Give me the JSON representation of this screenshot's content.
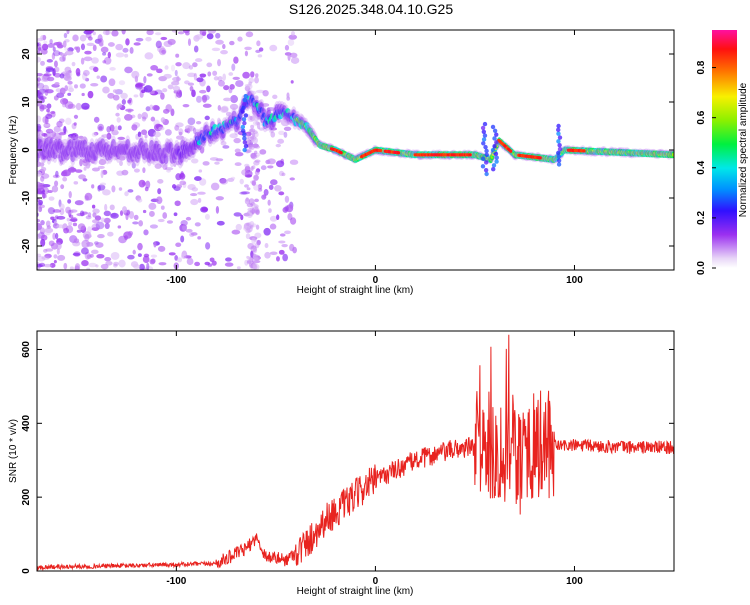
{
  "title": "S126.2025.348.04.10.G25",
  "colors": {
    "snr_line": "#e8231f",
    "background": "#ffffff"
  },
  "chart_data": [
    {
      "type": "heatmap",
      "xlabel": "Height of straight line (km)",
      "ylabel": "Frequency (Hz)",
      "xlim": [
        -170,
        150
      ],
      "ylim": [
        -25,
        25
      ],
      "xticks": [
        -100,
        0,
        100
      ],
      "yticks": [
        -20,
        -10,
        0,
        10,
        20
      ],
      "colorbar": {
        "label": "Normalized spectral amplitude",
        "range": [
          0,
          0.95
        ],
        "ticks": [
          0.0,
          0.2,
          0.4,
          0.6,
          0.8
        ],
        "colormap": "rainbow (white-violet-blue-cyan-green-yellow-red-magenta)"
      },
      "ridge": {
        "description": "dominant frequency track",
        "points": [
          {
            "x": -170,
            "f": 0
          },
          {
            "x": -120,
            "f": 0
          },
          {
            "x": -100,
            "f": -1
          },
          {
            "x": -85,
            "f": 3
          },
          {
            "x": -70,
            "f": 6
          },
          {
            "x": -62,
            "f": 11
          },
          {
            "x": -55,
            "f": 6
          },
          {
            "x": -45,
            "f": 8
          },
          {
            "x": -35,
            "f": 5
          },
          {
            "x": -28,
            "f": 1
          },
          {
            "x": -20,
            "f": 0
          },
          {
            "x": -10,
            "f": -2
          },
          {
            "x": 0,
            "f": 0
          },
          {
            "x": 20,
            "f": -1
          },
          {
            "x": 50,
            "f": -1
          },
          {
            "x": 58,
            "f": -2
          },
          {
            "x": 62,
            "f": 2
          },
          {
            "x": 70,
            "f": -1
          },
          {
            "x": 90,
            "f": -2
          },
          {
            "x": 95,
            "f": 0
          },
          {
            "x": 150,
            "f": -1
          }
        ]
      }
    },
    {
      "type": "line",
      "xlabel": "Height of straight line (km)",
      "ylabel": "SNR (10 * v/v)",
      "xlim": [
        -170,
        150
      ],
      "ylim": [
        0,
        650
      ],
      "xticks": [
        -100,
        0,
        100
      ],
      "yticks": [
        0,
        200,
        400,
        600
      ],
      "series": [
        {
          "envelope": [
            {
              "x": -170,
              "y": 10
            },
            {
              "x": -120,
              "y": 15
            },
            {
              "x": -80,
              "y": 20
            },
            {
              "x": -65,
              "y": 60
            },
            {
              "x": -60,
              "y": 90
            },
            {
              "x": -55,
              "y": 40
            },
            {
              "x": -45,
              "y": 30
            },
            {
              "x": -35,
              "y": 70
            },
            {
              "x": -25,
              "y": 140
            },
            {
              "x": -15,
              "y": 180
            },
            {
              "x": -5,
              "y": 230
            },
            {
              "x": 5,
              "y": 260
            },
            {
              "x": 20,
              "y": 300
            },
            {
              "x": 40,
              "y": 330
            },
            {
              "x": 55,
              "y": 340
            },
            {
              "x": 60,
              "y": 330
            },
            {
              "x": 70,
              "y": 330
            },
            {
              "x": 85,
              "y": 340
            },
            {
              "x": 100,
              "y": 340
            },
            {
              "x": 130,
              "y": 335
            },
            {
              "x": 150,
              "y": 335
            }
          ],
          "peak": {
            "x": 67,
            "y": 640
          }
        }
      ]
    }
  ]
}
